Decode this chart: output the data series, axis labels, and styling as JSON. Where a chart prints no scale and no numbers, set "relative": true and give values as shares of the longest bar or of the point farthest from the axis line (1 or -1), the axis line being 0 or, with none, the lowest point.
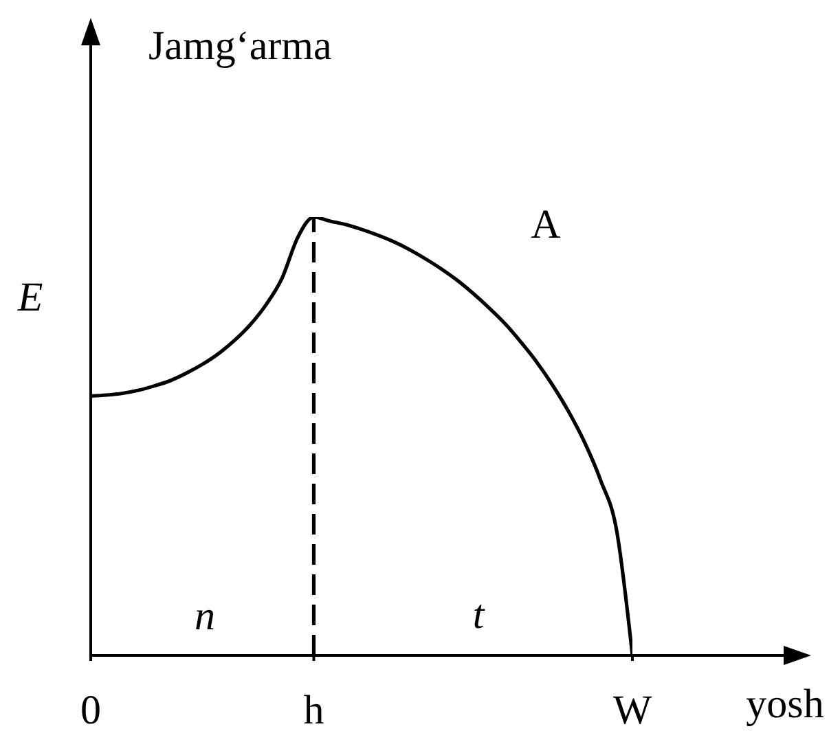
{
  "chart_data": {
    "type": "line",
    "ylabel": "Jamg‘arma",
    "xlabel": "yosh",
    "relative": true,
    "color": "#000000",
    "categories": [
      "0",
      null,
      null,
      null,
      null,
      null,
      null,
      null,
      null,
      null,
      null,
      null,
      null,
      null,
      "h",
      null,
      null,
      null,
      null,
      null,
      null,
      null,
      null,
      null,
      null,
      null,
      null,
      null,
      null,
      null,
      null,
      null,
      null,
      null,
      "W"
    ],
    "values": [
      0.592,
      0.594,
      0.598,
      0.605,
      0.615,
      0.627,
      0.644,
      0.664,
      0.688,
      0.718,
      0.754,
      0.8,
      0.86,
      0.954,
      1,
      0.991,
      0.983,
      0.972,
      0.959,
      0.944,
      0.926,
      0.905,
      0.882,
      0.856,
      0.826,
      0.793,
      0.757,
      0.715,
      0.669,
      0.616,
      0.556,
      0.486,
      0.4,
      0.287,
      0
    ],
    "ref_lines": [
      {
        "axis": "x",
        "value": "h",
        "line_style": "dashed",
        "color": "#000000"
      }
    ],
    "annotations": [
      "E",
      "A",
      "n",
      "t"
    ]
  }
}
